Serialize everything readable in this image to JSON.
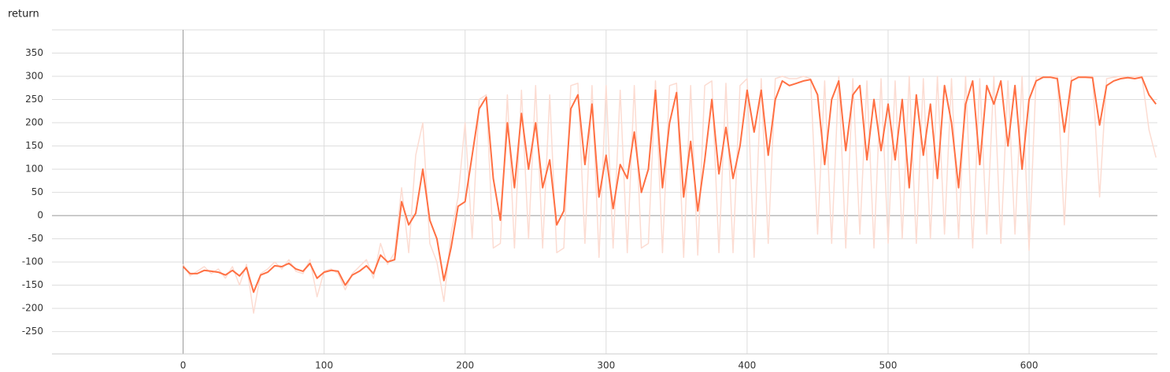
{
  "chart_data": {
    "type": "line",
    "title": "return",
    "x": [
      0,
      5,
      10,
      15,
      20,
      25,
      30,
      35,
      40,
      45,
      50,
      55,
      60,
      65,
      70,
      75,
      80,
      85,
      90,
      95,
      100,
      105,
      110,
      115,
      120,
      125,
      130,
      135,
      140,
      145,
      150,
      155,
      160,
      165,
      170,
      175,
      180,
      185,
      190,
      195,
      200,
      205,
      210,
      215,
      220,
      225,
      230,
      235,
      240,
      245,
      250,
      255,
      260,
      265,
      270,
      275,
      280,
      285,
      290,
      295,
      300,
      305,
      310,
      315,
      320,
      325,
      330,
      335,
      340,
      345,
      350,
      355,
      360,
      365,
      370,
      375,
      380,
      385,
      390,
      395,
      400,
      405,
      410,
      415,
      420,
      425,
      430,
      435,
      440,
      445,
      450,
      455,
      460,
      465,
      470,
      475,
      480,
      485,
      490,
      495,
      500,
      505,
      510,
      515,
      520,
      525,
      530,
      535,
      540,
      545,
      550,
      555,
      560,
      565,
      570,
      575,
      580,
      585,
      590,
      595,
      600,
      605,
      610,
      615,
      620,
      625,
      630,
      635,
      640,
      645,
      650,
      655,
      660,
      665,
      670,
      675,
      680,
      685,
      690
    ],
    "series": [
      {
        "color": "#fcdcd2",
        "values": [
          -105,
          -130,
          -120,
          -110,
          -125,
          -115,
          -135,
          -110,
          -150,
          -105,
          -210,
          -125,
          -115,
          -100,
          -115,
          -95,
          -120,
          -125,
          -95,
          -175,
          -120,
          -115,
          -125,
          -160,
          -125,
          -110,
          -95,
          -135,
          -60,
          -105,
          -80,
          60,
          -80,
          130,
          200,
          -60,
          -100,
          -185,
          -40,
          40,
          200,
          -50,
          250,
          260,
          -70,
          -60,
          260,
          -70,
          270,
          -50,
          280,
          -70,
          260,
          -80,
          -70,
          280,
          285,
          -60,
          280,
          -90,
          280,
          -70,
          270,
          -80,
          280,
          -70,
          -60,
          290,
          -80,
          280,
          285,
          -90,
          280,
          -85,
          280,
          290,
          -80,
          285,
          -80,
          280,
          295,
          -90,
          295,
          -60,
          295,
          300,
          295,
          295,
          300,
          295,
          -40,
          290,
          -60,
          300,
          -70,
          295,
          -40,
          290,
          -70,
          295,
          -60,
          290,
          -50,
          300,
          -60,
          295,
          -50,
          300,
          -40,
          295,
          -50,
          300,
          -70,
          295,
          -40,
          300,
          -60,
          290,
          -40,
          300,
          -75,
          300,
          298,
          300,
          300,
          -20,
          300,
          300,
          300,
          300,
          40,
          295,
          298,
          300,
          298,
          300,
          300,
          185,
          125
        ]
      },
      {
        "color": "#ff7043",
        "values": [
          -110,
          -125,
          -125,
          -118,
          -120,
          -122,
          -128,
          -118,
          -130,
          -112,
          -165,
          -128,
          -122,
          -108,
          -110,
          -103,
          -115,
          -120,
          -103,
          -135,
          -122,
          -118,
          -120,
          -150,
          -128,
          -120,
          -108,
          -125,
          -85,
          -100,
          -95,
          30,
          -20,
          5,
          100,
          -10,
          -50,
          -140,
          -70,
          20,
          30,
          130,
          230,
          255,
          80,
          -10,
          200,
          60,
          220,
          100,
          200,
          60,
          120,
          -20,
          10,
          230,
          260,
          110,
          240,
          40,
          130,
          15,
          110,
          80,
          180,
          50,
          100,
          270,
          60,
          200,
          265,
          40,
          160,
          10,
          120,
          250,
          90,
          190,
          80,
          150,
          270,
          180,
          270,
          130,
          250,
          290,
          280,
          285,
          290,
          293,
          260,
          110,
          250,
          290,
          140,
          260,
          280,
          120,
          250,
          140,
          240,
          120,
          250,
          60,
          260,
          130,
          240,
          80,
          280,
          200,
          60,
          240,
          290,
          110,
          280,
          240,
          290,
          150,
          280,
          100,
          250,
          290,
          298,
          298,
          295,
          180,
          290,
          298,
          298,
          297,
          195,
          280,
          290,
          295,
          297,
          295,
          298,
          260,
          240
        ]
      }
    ],
    "xlim": [
      -93,
      691
    ],
    "ylim": [
      -298,
      400
    ],
    "xticks": [
      0,
      100,
      200,
      300,
      400,
      500,
      600
    ],
    "yticks": [
      -250,
      -200,
      -150,
      -100,
      -50,
      0,
      50,
      100,
      150,
      200,
      250,
      300,
      350
    ],
    "grid": true
  }
}
